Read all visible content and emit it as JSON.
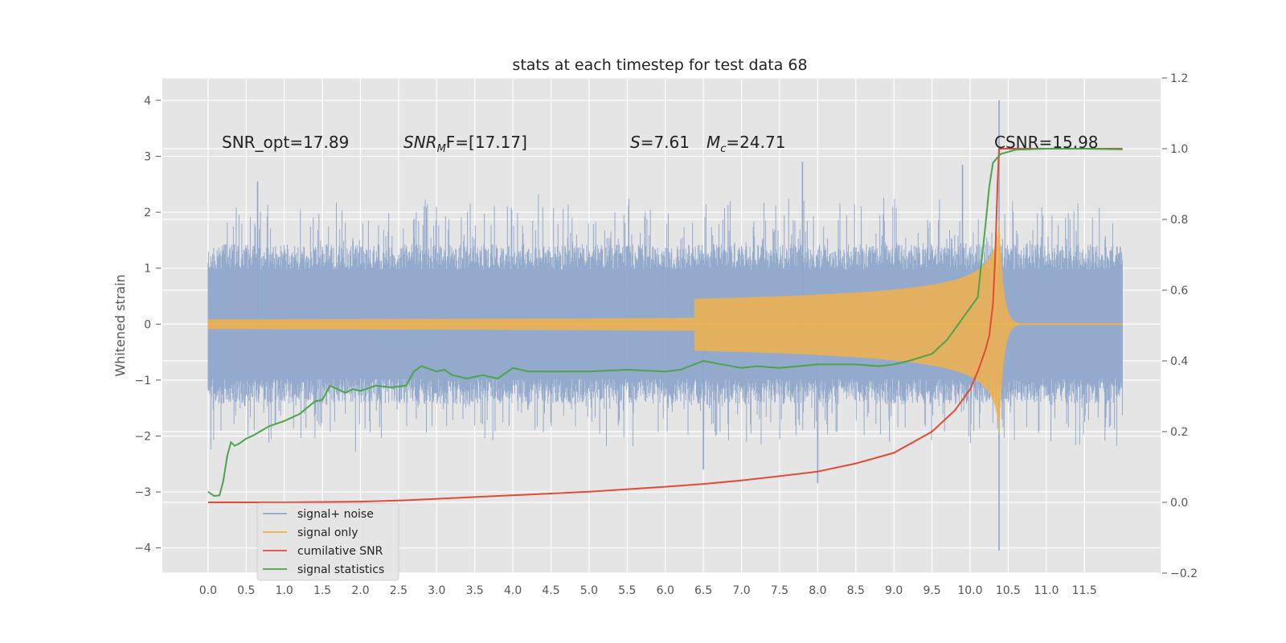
{
  "chart_data": {
    "type": "line",
    "title": "stats at each timestep for test data 68",
    "ylabel": "Whitened strain",
    "xlabel": "",
    "xlim": [
      -0.6,
      12.5
    ],
    "ylim": [
      -4.45,
      4.4
    ],
    "y2lim": [
      -0.2,
      1.2
    ],
    "grid": true,
    "legend_position": "lower-left",
    "xticks": [
      "0.0",
      "0.5",
      "1.0",
      "1.5",
      "2.0",
      "2.5",
      "3.0",
      "3.5",
      "4.0",
      "4.5",
      "5.0",
      "5.5",
      "6.0",
      "6.5",
      "7.0",
      "7.5",
      "8.0",
      "8.5",
      "9.0",
      "9.5",
      "10.0",
      "10.5",
      "11.0",
      "11.5"
    ],
    "yticks": [
      "4",
      "3",
      "2",
      "1",
      "0",
      "−1",
      "−2",
      "−3",
      "−4"
    ],
    "y2ticks": [
      "1.2",
      "1.0",
      "0.8",
      "0.6",
      "0.4",
      "0.2",
      "0.0",
      "−0.2"
    ],
    "annotations": {
      "snr_opt": "SNR_opt=17.89",
      "snr_mf_base": "SNR",
      "snr_mf_sub": "M",
      "snr_mf_rest": "F=[17.17]",
      "s_label": "S",
      "s_value": "=7.61",
      "mc_label": "M",
      "mc_sub": "c",
      "mc_value": "=24.71",
      "csnr": "CSNR=15.98"
    },
    "colors": {
      "background": "#e5e5e5",
      "grid": "#ffffff",
      "noise": "#8fa6cb",
      "signal": "#f0b24a",
      "cumulative": "#e24a33",
      "statistics": "#4aa54a"
    },
    "series": [
      {
        "name": "signal+ noise",
        "axis": "left",
        "kind": "noise-band",
        "t_end": 12.0,
        "typical_amplitude": 1.3,
        "spikes": [
          {
            "x": 10.38,
            "y": 4.0
          },
          {
            "x": 10.38,
            "y": -4.05
          },
          {
            "x": 0.65,
            "y": 2.55
          },
          {
            "x": 7.8,
            "y": 2.9
          },
          {
            "x": 6.5,
            "y": -2.6
          },
          {
            "x": 8.0,
            "y": -2.85
          },
          {
            "x": 9.9,
            "y": 2.85
          }
        ]
      },
      {
        "name": "signal only",
        "axis": "left",
        "kind": "chirp",
        "t_merger": 10.38,
        "t_end": 12.0,
        "peak_amplitude": 1.9
      },
      {
        "name": "cumilative SNR",
        "axis": "right",
        "x": [
          0.0,
          1.0,
          2.0,
          2.5,
          3.0,
          4.0,
          5.0,
          6.0,
          6.5,
          7.0,
          7.5,
          8.0,
          8.5,
          9.0,
          9.5,
          9.8,
          10.0,
          10.1,
          10.2,
          10.25,
          10.3,
          10.33,
          10.36,
          10.38,
          10.4,
          11.0,
          12.0
        ],
        "y": [
          0.0,
          0.0,
          0.002,
          0.005,
          0.01,
          0.02,
          0.03,
          0.044,
          0.052,
          0.062,
          0.074,
          0.087,
          0.11,
          0.14,
          0.2,
          0.26,
          0.32,
          0.37,
          0.43,
          0.47,
          0.56,
          0.7,
          0.9,
          1.0,
          1.0,
          1.0,
          1.0
        ]
      },
      {
        "name": "signal statistics",
        "axis": "right",
        "x": [
          0.0,
          0.08,
          0.15,
          0.2,
          0.25,
          0.3,
          0.35,
          0.4,
          0.5,
          0.6,
          0.8,
          1.0,
          1.2,
          1.4,
          1.5,
          1.6,
          1.7,
          1.8,
          1.9,
          2.0,
          2.2,
          2.4,
          2.6,
          2.7,
          2.8,
          3.0,
          3.1,
          3.2,
          3.4,
          3.6,
          3.8,
          4.0,
          4.2,
          4.5,
          5.0,
          5.5,
          6.0,
          6.2,
          6.5,
          7.0,
          7.2,
          7.5,
          8.0,
          8.5,
          8.8,
          9.0,
          9.2,
          9.5,
          9.7,
          9.8,
          9.9,
          10.0,
          10.1,
          10.15,
          10.2,
          10.25,
          10.3,
          10.4,
          10.6,
          11.0,
          11.5,
          12.0
        ],
        "y": [
          0.03,
          0.018,
          0.02,
          0.06,
          0.13,
          0.17,
          0.16,
          0.165,
          0.18,
          0.19,
          0.215,
          0.23,
          0.25,
          0.285,
          0.29,
          0.33,
          0.32,
          0.31,
          0.32,
          0.315,
          0.33,
          0.325,
          0.33,
          0.37,
          0.385,
          0.37,
          0.375,
          0.36,
          0.35,
          0.36,
          0.35,
          0.38,
          0.37,
          0.37,
          0.37,
          0.375,
          0.37,
          0.375,
          0.4,
          0.38,
          0.385,
          0.38,
          0.39,
          0.39,
          0.385,
          0.39,
          0.4,
          0.42,
          0.46,
          0.49,
          0.52,
          0.55,
          0.58,
          0.68,
          0.78,
          0.89,
          0.96,
          0.985,
          0.997,
          1.0,
          1.0,
          0.998
        ]
      }
    ]
  }
}
